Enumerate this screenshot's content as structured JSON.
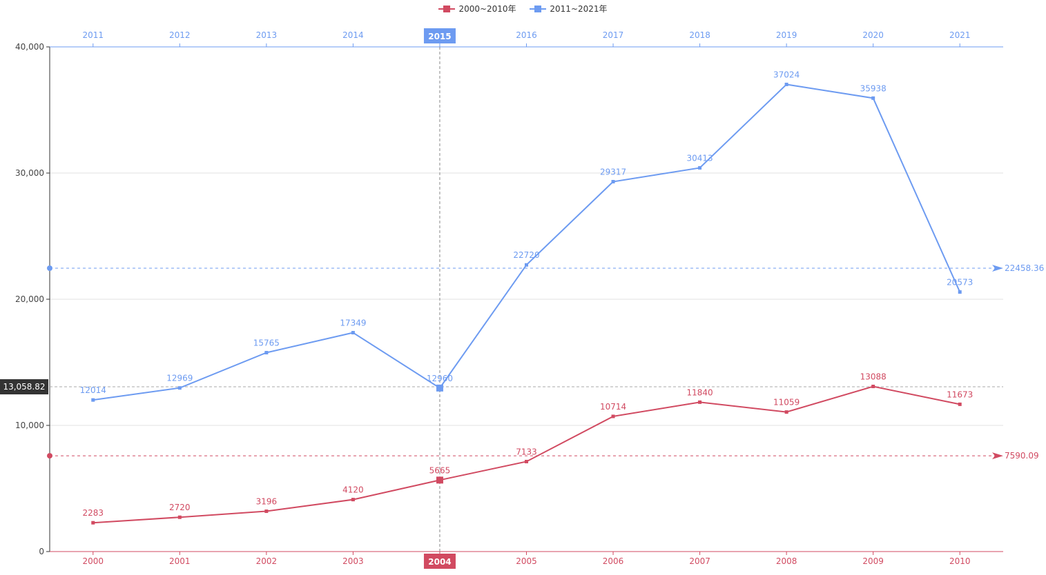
{
  "legend": [
    {
      "label": "2000~2010年",
      "color": "#d14a61"
    },
    {
      "label": "2011~2021年",
      "color": "#6d9bf1"
    }
  ],
  "chart_data": {
    "type": "line",
    "ylim": [
      0,
      40000
    ],
    "y_ticks": [
      "0",
      "10,000",
      "20,000",
      "30,000",
      "40,000"
    ],
    "y_tick_values": [
      0,
      10000,
      20000,
      30000,
      40000
    ],
    "grid": true,
    "legend_position": "top-center",
    "x_bottom": [
      "2000",
      "2001",
      "2002",
      "2003",
      "2004",
      "2005",
      "2006",
      "2007",
      "2008",
      "2009",
      "2010"
    ],
    "x_top": [
      "2011",
      "2012",
      "2013",
      "2014",
      "2015",
      "2016",
      "2017",
      "2018",
      "2019",
      "2020",
      "2021"
    ],
    "series": [
      {
        "name": "2000~2010年",
        "axis": "bottom",
        "color": "#d14a61",
        "values": [
          2283,
          2720,
          3196,
          4120,
          5665,
          7133,
          10714,
          11840,
          11059,
          13088,
          11673
        ],
        "average": 7590.09,
        "average_label": "7590.09"
      },
      {
        "name": "2011~2021年",
        "axis": "top",
        "color": "#6d9bf1",
        "values": [
          12014,
          12969,
          15765,
          17349,
          12960,
          22720,
          29317,
          30413,
          37024,
          35938,
          20573
        ],
        "average": 22458.36,
        "average_label": "22458.36"
      }
    ],
    "crosshair": {
      "index": 4,
      "x_bottom_label": "2004",
      "x_top_label": "2015",
      "y_value": 13058.82,
      "y_label": "13,058.82"
    }
  }
}
